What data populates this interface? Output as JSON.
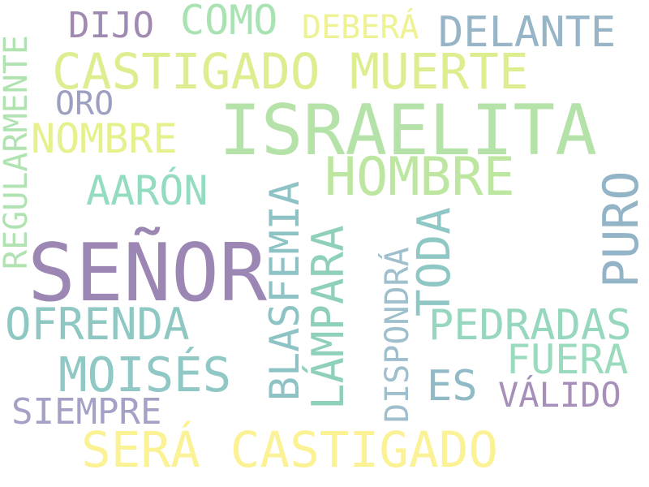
{
  "words": [
    {
      "text": "SEÑOR",
      "color": "#9c86b3"
    },
    {
      "text": "ISRAELITA",
      "color": "#b5e2a8"
    },
    {
      "text": "SERÁ CASTIGADO",
      "color": "#fbf195"
    },
    {
      "text": "CASTIGADO MUERTE",
      "color": "#dcee90"
    },
    {
      "text": "HOMBRE",
      "color": "#bde6a0"
    },
    {
      "text": "MOISÉS",
      "color": "#8fc8c4"
    },
    {
      "text": "PEDRADAS",
      "color": "#96d7bd"
    },
    {
      "text": "OFRENDA",
      "color": "#8fc7c2"
    },
    {
      "text": "DELANTE",
      "color": "#97b5c6"
    },
    {
      "text": "NOMBRE",
      "color": "#e6f08d"
    },
    {
      "text": "AARÓN",
      "color": "#93dcc0"
    },
    {
      "text": "FUERA",
      "color": "#9adbbd"
    },
    {
      "text": "COMO",
      "color": "#a9e2b3"
    },
    {
      "text": "DEBERÁ",
      "color": "#eef292"
    },
    {
      "text": "DIJO",
      "color": "#a08ab2"
    },
    {
      "text": "ORO",
      "color": "#9c9fbf"
    },
    {
      "text": "SIEMPRE",
      "color": "#a3a1c6"
    },
    {
      "text": "ES",
      "color": "#8fbac6"
    },
    {
      "text": "VÁLIDO",
      "color": "#a68fb8"
    },
    {
      "text": "BLASFEMIA",
      "color": "#8ec3c6"
    },
    {
      "text": "LÁMPARA",
      "color": "#8ed0b9"
    },
    {
      "text": "DISPONDRÁ",
      "color": "#9fbfcc"
    },
    {
      "text": "TODA",
      "color": "#8fc7c4"
    },
    {
      "text": "PURO",
      "color": "#93b3c6"
    },
    {
      "text": "REGULARMENTE",
      "color": "#b0e3b1"
    }
  ]
}
